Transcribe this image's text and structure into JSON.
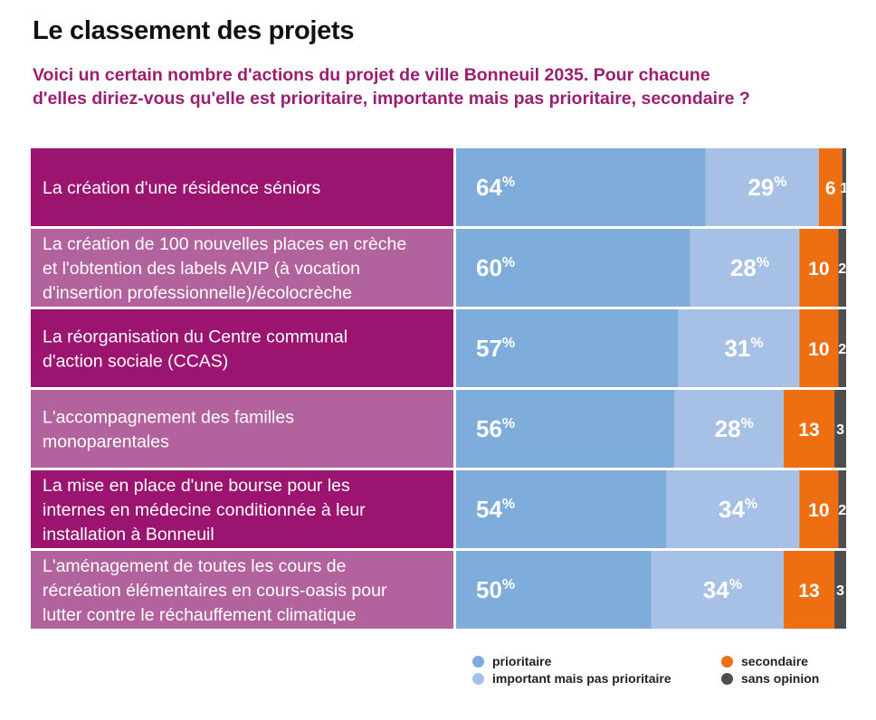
{
  "title": "Le classement des projets",
  "subtitle": "Voici un certain nombre d'actions du projet de ville Bonneuil 2035. Pour chacune d'elles diriez-vous qu'elle est prioritaire, importante mais pas prioritaire, secondaire ?",
  "colors": {
    "subtitle": "#9b1f6f",
    "label_dark": "#9b1470",
    "label_light": "#b2639d",
    "prioritaire": "#7eaddc",
    "important": "#a7c1e6",
    "secondaire": "#ee6f12",
    "sans_opinion": "#4e4e4e"
  },
  "chart_data": {
    "type": "bar",
    "stacked": true,
    "orientation": "horizontal",
    "unit": "%",
    "categories": [
      [
        "La création d'une résidence séniors"
      ],
      [
        "La création de 100 nouvelles places en crèche",
        "et l'obtention des labels AVIP (à vocation",
        "d'insertion professionnelle)/écolocrèche"
      ],
      [
        "La réorganisation du Centre communal",
        "d'action sociale (CCAS)"
      ],
      [
        "L'accompagnement des familles",
        "monoparentales"
      ],
      [
        "La mise en place d'une bourse pour les",
        "internes en médecine conditionnée à leur",
        "installation à Bonneuil"
      ],
      [
        "L'aménagement de toutes les cours de",
        "récréation élémentaires en cours-oasis pour",
        "lutter contre le réchauffement climatique"
      ]
    ],
    "series": [
      {
        "name": "prioritaire",
        "color": "#7eaddc",
        "values": [
          64,
          60,
          57,
          56,
          54,
          50
        ]
      },
      {
        "name": "important mais pas prioritaire",
        "color": "#a7c1e6",
        "values": [
          29,
          28,
          31,
          28,
          34,
          34
        ]
      },
      {
        "name": "secondaire",
        "color": "#ee6f12",
        "values": [
          6,
          10,
          10,
          13,
          10,
          13
        ]
      },
      {
        "name": "sans opinion",
        "color": "#4e4e4e",
        "values": [
          1,
          2,
          2,
          3,
          2,
          3
        ]
      }
    ],
    "legend": [
      "prioritaire",
      "important mais pas prioritaire",
      "secondaire",
      "sans opinion"
    ],
    "legend_position": "bottom-right"
  }
}
